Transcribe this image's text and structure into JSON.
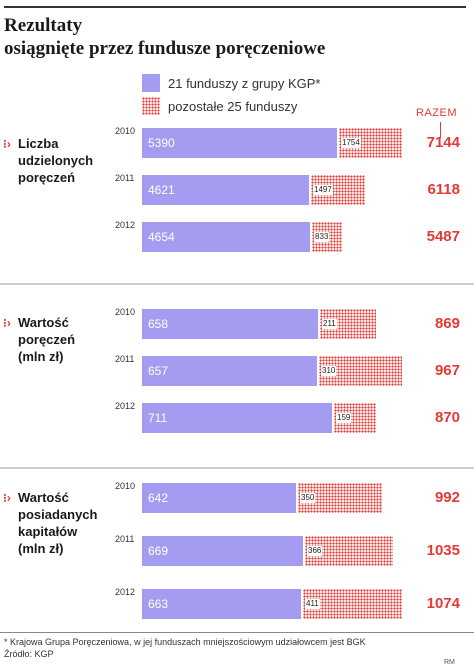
{
  "title": {
    "line1": "Rezultaty",
    "line2": "osiągnięte przez fundusze poręczeniowe"
  },
  "legend": {
    "kgp": "21 funduszy z grupy KGP*",
    "other": "pozostałe 25 funduszy",
    "total_header": "RAZEM"
  },
  "colors": {
    "kgp": "#a49cf0",
    "other_dots": "#e53935",
    "total_text": "#e53935"
  },
  "chart_data": {
    "type": "bar",
    "orientation": "horizontal",
    "stacked": true,
    "series_names": [
      "21 funduszy z grupy KGP*",
      "pozostałe 25 funduszy"
    ],
    "groups": [
      {
        "label": "Liczba\nudzielonych\nporęczeń",
        "rows": [
          {
            "year": "2010",
            "kgp": "5390",
            "other": "1754",
            "total": "7144"
          },
          {
            "year": "2011",
            "kgp": "4621",
            "other": "1497",
            "total": "6118"
          },
          {
            "year": "2012",
            "kgp": "4654",
            "other": "833",
            "total": "5487"
          }
        ]
      },
      {
        "label": "Wartość\nporęczeń\n(mln zł)",
        "rows": [
          {
            "year": "2010",
            "kgp": "658",
            "other": "211",
            "total": "869"
          },
          {
            "year": "2011",
            "kgp": "657",
            "other": "310",
            "total": "967"
          },
          {
            "year": "2012",
            "kgp": "711",
            "other": "159",
            "total": "870"
          }
        ]
      },
      {
        "label": "Wartość\nposiadanych\nkapitałów\n(mln zł)",
        "rows": [
          {
            "year": "2010",
            "kgp": "642",
            "other": "350",
            "total": "992"
          },
          {
            "year": "2011",
            "kgp": "669",
            "other": "366",
            "total": "1035"
          },
          {
            "year": "2012",
            "kgp": "663",
            "other": "411",
            "total": "1074"
          }
        ]
      }
    ]
  },
  "footnote": {
    "line1": "* Krajowa Grupa Poręczeniowa, w jej funduszach mniejszościowym udziałowcem jest BGK",
    "line2": "Źródło: KGP"
  },
  "credit": "RM"
}
